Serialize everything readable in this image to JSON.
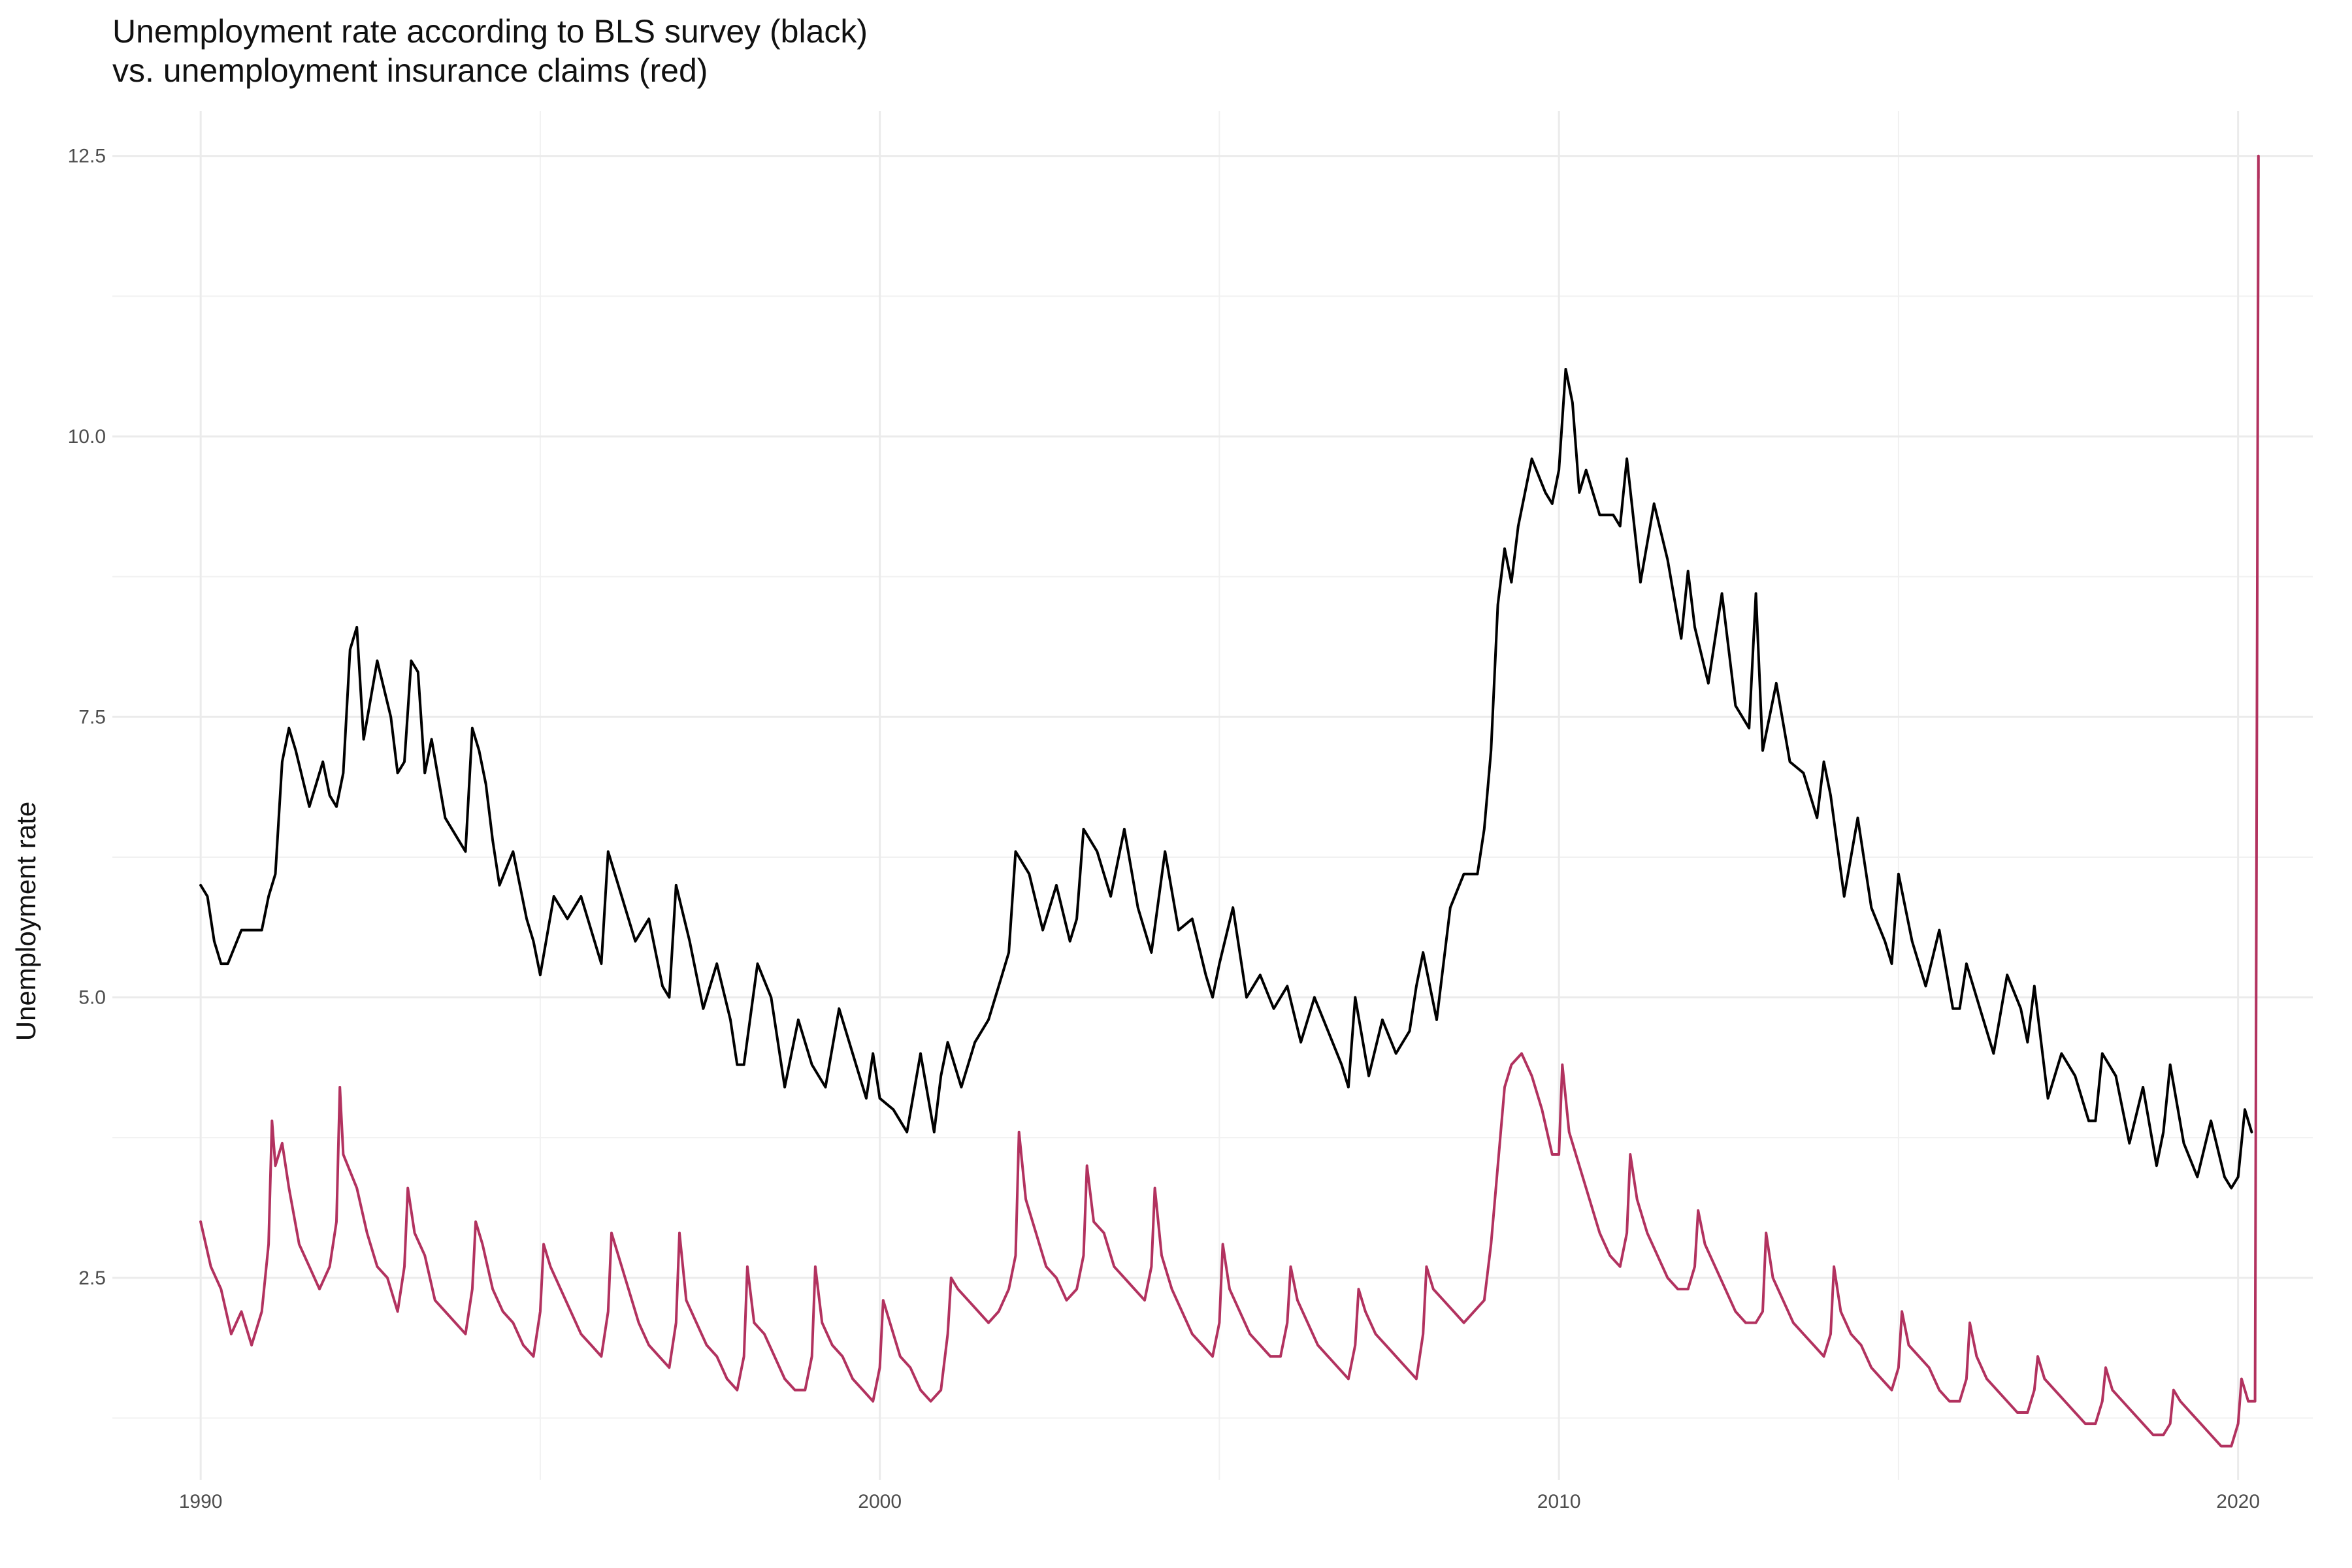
{
  "chart_data": {
    "type": "line",
    "title_line1": "Unemployment rate according to BLS survey (black)",
    "title_line2": "vs. unemployment insurance claims (red)",
    "xlabel": "",
    "ylabel": "Unemployment rate",
    "xlim": [
      1988.7,
      2021.1
    ],
    "ylim": [
      0.7,
      12.9
    ],
    "x_ticks": [
      1990,
      2000,
      2010,
      2020
    ],
    "x_tick_labels": [
      "1990",
      "2000",
      "2010",
      "2020"
    ],
    "y_ticks": [
      2.5,
      5.0,
      7.5,
      10.0,
      12.5
    ],
    "y_tick_labels": [
      "2.5",
      "5.0",
      "7.5",
      "10.0",
      "12.5"
    ],
    "grid": true,
    "legend": "none",
    "series": [
      {
        "color": "#000000",
        "x": [
          1990.0,
          1990.1,
          1990.2,
          1990.3,
          1990.4,
          1990.6,
          1990.8,
          1990.9,
          1991.0,
          1991.1,
          1991.2,
          1991.3,
          1991.4,
          1991.6,
          1991.8,
          1991.9,
          1992.0,
          1992.1,
          1992.2,
          1992.3,
          1992.4,
          1992.6,
          1992.8,
          1992.9,
          1993.0,
          1993.1,
          1993.2,
          1993.3,
          1993.4,
          1993.6,
          1993.8,
          1993.9,
          1994.0,
          1994.1,
          1994.2,
          1994.3,
          1994.4,
          1994.6,
          1994.8,
          1994.9,
          1995.0,
          1995.2,
          1995.4,
          1995.6,
          1995.8,
          1995.9,
          1996.0,
          1996.2,
          1996.4,
          1996.6,
          1996.8,
          1996.9,
          1997.0,
          1997.2,
          1997.4,
          1997.6,
          1997.8,
          1997.9,
          1998.0,
          1998.2,
          1998.4,
          1998.6,
          1998.8,
          1998.9,
          1999.0,
          1999.2,
          1999.4,
          1999.6,
          1999.8,
          1999.9,
          2000.0,
          2000.2,
          2000.4,
          2000.6,
          2000.8,
          2000.9,
          2001.0,
          2001.2,
          2001.4,
          2001.6,
          2001.8,
          2001.9,
          2002.0,
          2002.2,
          2002.4,
          2002.6,
          2002.8,
          2002.9,
          2003.0,
          2003.2,
          2003.4,
          2003.6,
          2003.8,
          2003.9,
          2004.0,
          2004.2,
          2004.4,
          2004.6,
          2004.8,
          2004.9,
          2005.0,
          2005.2,
          2005.4,
          2005.6,
          2005.8,
          2005.9,
          2006.0,
          2006.2,
          2006.4,
          2006.6,
          2006.8,
          2006.9,
          2007.0,
          2007.2,
          2007.4,
          2007.6,
          2007.8,
          2007.9,
          2008.0,
          2008.2,
          2008.4,
          2008.6,
          2008.8,
          2008.9,
          2009.0,
          2009.1,
          2009.2,
          2009.3,
          2009.4,
          2009.6,
          2009.8,
          2009.9,
          2010.0,
          2010.1,
          2010.2,
          2010.3,
          2010.4,
          2010.6,
          2010.8,
          2010.9,
          2011.0,
          2011.2,
          2011.4,
          2011.6,
          2011.8,
          2011.9,
          2012.0,
          2012.2,
          2012.4,
          2012.6,
          2012.8,
          2012.9,
          2013.0,
          2013.2,
          2013.4,
          2013.6,
          2013.8,
          2013.9,
          2014.0,
          2014.2,
          2014.4,
          2014.6,
          2014.8,
          2014.9,
          2015.0,
          2015.2,
          2015.4,
          2015.6,
          2015.8,
          2015.9,
          2016.0,
          2016.2,
          2016.4,
          2016.6,
          2016.8,
          2016.9,
          2017.0,
          2017.2,
          2017.4,
          2017.6,
          2017.8,
          2017.9,
          2018.0,
          2018.2,
          2018.4,
          2018.6,
          2018.8,
          2018.9,
          2019.0,
          2019.2,
          2019.4,
          2019.6,
          2019.8,
          2019.9,
          2020.0,
          2020.1,
          2020.2
        ],
        "values": [
          6.0,
          5.9,
          5.5,
          5.3,
          5.3,
          5.6,
          5.6,
          5.6,
          5.9,
          6.1,
          7.1,
          7.4,
          7.2,
          6.7,
          7.1,
          6.8,
          6.7,
          7.0,
          8.1,
          8.3,
          7.3,
          8.0,
          7.5,
          7.0,
          7.1,
          8.0,
          7.9,
          7.0,
          7.3,
          6.6,
          6.4,
          6.3,
          7.4,
          7.2,
          6.9,
          6.4,
          6.0,
          6.3,
          5.7,
          5.5,
          5.2,
          5.9,
          5.7,
          5.9,
          5.5,
          5.3,
          6.3,
          5.9,
          5.5,
          5.7,
          5.1,
          5.0,
          6.0,
          5.5,
          4.9,
          5.3,
          4.8,
          4.4,
          4.4,
          5.3,
          5.0,
          4.2,
          4.8,
          4.6,
          4.4,
          4.2,
          4.9,
          4.5,
          4.1,
          4.5,
          4.1,
          4.0,
          3.8,
          4.5,
          3.8,
          4.3,
          4.6,
          4.2,
          4.6,
          4.8,
          5.2,
          5.4,
          6.3,
          6.1,
          5.6,
          6.0,
          5.5,
          5.7,
          6.5,
          6.3,
          5.9,
          6.5,
          5.8,
          5.6,
          5.4,
          6.3,
          5.6,
          5.7,
          5.2,
          5.0,
          5.3,
          5.8,
          5.0,
          5.2,
          4.9,
          5.0,
          5.1,
          4.6,
          5.0,
          4.7,
          4.4,
          4.2,
          5.0,
          4.3,
          4.8,
          4.5,
          4.7,
          5.1,
          5.4,
          4.8,
          5.8,
          6.1,
          6.1,
          6.5,
          7.2,
          8.5,
          9.0,
          8.7,
          9.2,
          9.8,
          9.5,
          9.4,
          9.7,
          10.6,
          10.3,
          9.5,
          9.7,
          9.3,
          9.3,
          9.2,
          9.8,
          8.7,
          9.4,
          8.9,
          8.2,
          8.8,
          8.3,
          7.8,
          8.6,
          7.6,
          7.4,
          8.6,
          7.2,
          7.8,
          7.1,
          7.0,
          6.6,
          7.1,
          6.8,
          5.9,
          6.6,
          5.8,
          5.5,
          5.3,
          6.1,
          5.5,
          5.1,
          5.6,
          4.9,
          4.9,
          5.3,
          4.9,
          4.5,
          5.2,
          4.9,
          4.6,
          5.1,
          4.1,
          4.5,
          4.3,
          3.9,
          3.9,
          4.5,
          4.3,
          3.7,
          4.2,
          3.5,
          3.8,
          4.4,
          3.7,
          3.4,
          3.9,
          3.4,
          3.3,
          3.4,
          4.0,
          3.8
        ]
      },
      {
        "color": "#b2325f",
        "x": [
          1990.0,
          1990.15,
          1990.3,
          1990.45,
          1990.6,
          1990.75,
          1990.9,
          1991.0,
          1991.05,
          1991.1,
          1991.2,
          1991.3,
          1991.45,
          1991.6,
          1991.75,
          1991.9,
          1992.0,
          1992.05,
          1992.1,
          1992.3,
          1992.45,
          1992.6,
          1992.75,
          1992.9,
          1993.0,
          1993.05,
          1993.15,
          1993.3,
          1993.45,
          1993.6,
          1993.75,
          1993.9,
          1994.0,
          1994.05,
          1994.15,
          1994.3,
          1994.45,
          1994.6,
          1994.75,
          1994.9,
          1995.0,
          1995.05,
          1995.15,
          1995.3,
          1995.45,
          1995.6,
          1995.75,
          1995.9,
          1996.0,
          1996.05,
          1996.15,
          1996.3,
          1996.45,
          1996.6,
          1996.75,
          1996.9,
          1997.0,
          1997.05,
          1997.15,
          1997.3,
          1997.45,
          1997.6,
          1997.75,
          1997.9,
          1998.0,
          1998.05,
          1998.15,
          1998.3,
          1998.45,
          1998.6,
          1998.75,
          1998.9,
          1999.0,
          1999.05,
          1999.15,
          1999.3,
          1999.45,
          1999.6,
          1999.75,
          1999.9,
          2000.0,
          2000.05,
          2000.15,
          2000.3,
          2000.45,
          2000.6,
          2000.75,
          2000.9,
          2001.0,
          2001.05,
          2001.15,
          2001.3,
          2001.45,
          2001.6,
          2001.75,
          2001.9,
          2002.0,
          2002.05,
          2002.15,
          2002.3,
          2002.45,
          2002.6,
          2002.75,
          2002.9,
          2003.0,
          2003.05,
          2003.15,
          2003.3,
          2003.45,
          2003.6,
          2003.75,
          2003.9,
          2004.0,
          2004.05,
          2004.15,
          2004.3,
          2004.45,
          2004.6,
          2004.75,
          2004.9,
          2005.0,
          2005.05,
          2005.15,
          2005.3,
          2005.45,
          2005.6,
          2005.75,
          2005.9,
          2006.0,
          2006.05,
          2006.15,
          2006.3,
          2006.45,
          2006.6,
          2006.75,
          2006.9,
          2007.0,
          2007.05,
          2007.15,
          2007.3,
          2007.45,
          2007.6,
          2007.75,
          2007.9,
          2008.0,
          2008.05,
          2008.15,
          2008.3,
          2008.45,
          2008.6,
          2008.75,
          2008.9,
          2009.0,
          2009.1,
          2009.2,
          2009.3,
          2009.45,
          2009.6,
          2009.75,
          2009.9,
          2010.0,
          2010.05,
          2010.15,
          2010.3,
          2010.45,
          2010.6,
          2010.75,
          2010.9,
          2011.0,
          2011.05,
          2011.15,
          2011.3,
          2011.45,
          2011.6,
          2011.75,
          2011.9,
          2012.0,
          2012.05,
          2012.15,
          2012.3,
          2012.45,
          2012.6,
          2012.75,
          2012.9,
          2013.0,
          2013.05,
          2013.15,
          2013.3,
          2013.45,
          2013.6,
          2013.75,
          2013.9,
          2014.0,
          2014.05,
          2014.15,
          2014.3,
          2014.45,
          2014.6,
          2014.75,
          2014.9,
          2015.0,
          2015.05,
          2015.15,
          2015.3,
          2015.45,
          2015.6,
          2015.75,
          2015.9,
          2016.0,
          2016.05,
          2016.15,
          2016.3,
          2016.45,
          2016.6,
          2016.75,
          2016.9,
          2017.0,
          2017.05,
          2017.15,
          2017.3,
          2017.45,
          2017.6,
          2017.75,
          2017.9,
          2018.0,
          2018.05,
          2018.15,
          2018.3,
          2018.45,
          2018.6,
          2018.75,
          2018.9,
          2019.0,
          2019.05,
          2019.15,
          2019.3,
          2019.45,
          2019.6,
          2019.75,
          2019.9,
          2020.0,
          2020.05,
          2020.15,
          2020.2,
          2020.25,
          2020.3,
          2020.3
        ],
        "values": [
          3.0,
          2.6,
          2.4,
          2.0,
          2.2,
          1.9,
          2.2,
          2.8,
          3.9,
          3.5,
          3.7,
          3.3,
          2.8,
          2.6,
          2.4,
          2.6,
          3.0,
          4.2,
          3.6,
          3.3,
          2.9,
          2.6,
          2.5,
          2.2,
          2.6,
          3.3,
          2.9,
          2.7,
          2.3,
          2.2,
          2.1,
          2.0,
          2.4,
          3.0,
          2.8,
          2.4,
          2.2,
          2.1,
          1.9,
          1.8,
          2.2,
          2.8,
          2.6,
          2.4,
          2.2,
          2.0,
          1.9,
          1.8,
          2.2,
          2.9,
          2.7,
          2.4,
          2.1,
          1.9,
          1.8,
          1.7,
          2.1,
          2.9,
          2.3,
          2.1,
          1.9,
          1.8,
          1.6,
          1.5,
          1.8,
          2.6,
          2.1,
          2.0,
          1.8,
          1.6,
          1.5,
          1.5,
          1.8,
          2.6,
          2.1,
          1.9,
          1.8,
          1.6,
          1.5,
          1.4,
          1.7,
          2.3,
          2.1,
          1.8,
          1.7,
          1.5,
          1.4,
          1.5,
          2.0,
          2.5,
          2.4,
          2.3,
          2.2,
          2.1,
          2.2,
          2.4,
          2.7,
          3.8,
          3.2,
          2.9,
          2.6,
          2.5,
          2.3,
          2.4,
          2.7,
          3.5,
          3.0,
          2.9,
          2.6,
          2.5,
          2.4,
          2.3,
          2.6,
          3.3,
          2.7,
          2.4,
          2.2,
          2.0,
          1.9,
          1.8,
          2.1,
          2.8,
          2.4,
          2.2,
          2.0,
          1.9,
          1.8,
          1.8,
          2.1,
          2.6,
          2.3,
          2.1,
          1.9,
          1.8,
          1.7,
          1.6,
          1.9,
          2.4,
          2.2,
          2.0,
          1.9,
          1.8,
          1.7,
          1.6,
          2.0,
          2.6,
          2.4,
          2.3,
          2.2,
          2.1,
          2.2,
          2.3,
          2.8,
          3.5,
          4.2,
          4.4,
          4.5,
          4.3,
          4.0,
          3.6,
          3.6,
          4.4,
          3.8,
          3.5,
          3.2,
          2.9,
          2.7,
          2.6,
          2.9,
          3.6,
          3.2,
          2.9,
          2.7,
          2.5,
          2.4,
          2.4,
          2.6,
          3.1,
          2.8,
          2.6,
          2.4,
          2.2,
          2.1,
          2.1,
          2.2,
          2.9,
          2.5,
          2.3,
          2.1,
          2.0,
          1.9,
          1.8,
          2.0,
          2.6,
          2.2,
          2.0,
          1.9,
          1.7,
          1.6,
          1.5,
          1.7,
          2.2,
          1.9,
          1.8,
          1.7,
          1.5,
          1.4,
          1.4,
          1.6,
          2.1,
          1.8,
          1.6,
          1.5,
          1.4,
          1.3,
          1.3,
          1.5,
          1.8,
          1.6,
          1.5,
          1.4,
          1.3,
          1.2,
          1.2,
          1.4,
          1.7,
          1.5,
          1.4,
          1.3,
          1.2,
          1.1,
          1.1,
          1.2,
          1.5,
          1.4,
          1.3,
          1.2,
          1.1,
          1.0,
          1.0,
          1.2,
          1.6,
          1.4,
          1.4,
          1.4,
          12.5,
          12.3
        ]
      }
    ]
  }
}
